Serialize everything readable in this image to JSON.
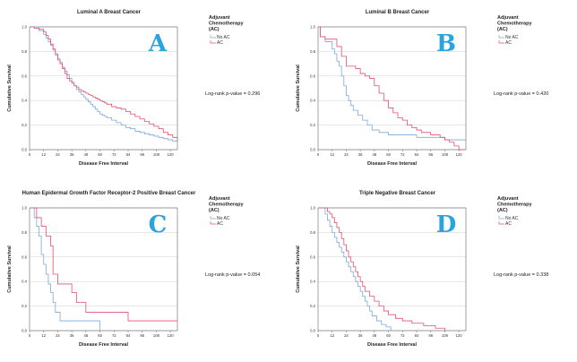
{
  "colors": {
    "no_ac": "#7fa7dc",
    "ac": "#e2506e",
    "letter": "#2aa4df",
    "grid": "#cfcfcf",
    "axis": "#666666"
  },
  "chart_data": [
    {
      "type": "line",
      "letter": "A",
      "title": "Luminal A Breast Cancer",
      "xlabel": "Disease Free Interval",
      "ylabel": "Cumulative Survival",
      "xlim": [
        0,
        126
      ],
      "ylim": [
        0,
        1.0
      ],
      "xticks": [
        "0",
        "12",
        "24",
        "36",
        "48",
        "60",
        "72",
        "84",
        "96",
        "108",
        "120"
      ],
      "yticks": [
        "0.0",
        "0.2",
        "0.4",
        "0.6",
        "0.8",
        "1.0"
      ],
      "legend_title": [
        "Adjuvant",
        "Chemotherapy",
        "(AC)"
      ],
      "pvalue": "Log-rank p-value = 0.296",
      "series": [
        {
          "name": "No AC",
          "color_key": "no_ac",
          "x": [
            0,
            4,
            8,
            12,
            14,
            16,
            18,
            20,
            22,
            24,
            26,
            28,
            30,
            32,
            34,
            36,
            38,
            40,
            42,
            44,
            46,
            48,
            50,
            52,
            54,
            56,
            58,
            60,
            62,
            64,
            66,
            70,
            74,
            78,
            82,
            86,
            90,
            94,
            98,
            102,
            106,
            110,
            114,
            118,
            122,
            126
          ],
          "y": [
            1.0,
            0.99,
            0.97,
            0.94,
            0.91,
            0.88,
            0.85,
            0.81,
            0.77,
            0.74,
            0.71,
            0.67,
            0.64,
            0.61,
            0.58,
            0.55,
            0.52,
            0.49,
            0.47,
            0.45,
            0.43,
            0.41,
            0.39,
            0.37,
            0.35,
            0.33,
            0.31,
            0.29,
            0.28,
            0.27,
            0.26,
            0.24,
            0.22,
            0.2,
            0.18,
            0.17,
            0.15,
            0.14,
            0.13,
            0.12,
            0.11,
            0.1,
            0.09,
            0.08,
            0.07,
            0.07
          ]
        },
        {
          "name": "AC",
          "color_key": "ac",
          "x": [
            0,
            4,
            8,
            12,
            14,
            16,
            18,
            20,
            22,
            24,
            26,
            28,
            30,
            32,
            34,
            36,
            38,
            40,
            42,
            44,
            46,
            48,
            50,
            52,
            54,
            56,
            58,
            60,
            62,
            64,
            66,
            70,
            74,
            78,
            82,
            86,
            90,
            94,
            98,
            102,
            106,
            110,
            114,
            118,
            122,
            126
          ],
          "y": [
            1.0,
            0.99,
            0.98,
            0.96,
            0.93,
            0.9,
            0.86,
            0.82,
            0.78,
            0.73,
            0.7,
            0.66,
            0.62,
            0.58,
            0.56,
            0.54,
            0.52,
            0.51,
            0.49,
            0.48,
            0.47,
            0.46,
            0.45,
            0.44,
            0.43,
            0.42,
            0.41,
            0.4,
            0.39,
            0.38,
            0.37,
            0.35,
            0.34,
            0.33,
            0.31,
            0.29,
            0.27,
            0.25,
            0.23,
            0.21,
            0.19,
            0.17,
            0.14,
            0.12,
            0.1,
            0.07
          ]
        }
      ]
    },
    {
      "type": "line",
      "letter": "B",
      "title": "Luminal B Breast Cancer",
      "xlabel": "Disease Free Interval",
      "ylabel": "Cumulative Survival",
      "xlim": [
        0,
        126
      ],
      "ylim": [
        0,
        1.0
      ],
      "xticks": [
        "0",
        "12",
        "24",
        "36",
        "48",
        "60",
        "72",
        "84",
        "96",
        "108",
        "120"
      ],
      "yticks": [
        "0.0",
        "0.2",
        "0.4",
        "0.6",
        "0.8",
        "1.0"
      ],
      "legend_title": [
        "Adjuvant",
        "Chemotherapy",
        "(AC)"
      ],
      "pvalue": "Log-rank p-value = 0.420",
      "series": [
        {
          "name": "No AC",
          "color_key": "no_ac",
          "x": [
            0,
            2,
            6,
            12,
            14,
            16,
            18,
            20,
            22,
            24,
            26,
            28,
            30,
            34,
            38,
            42,
            46,
            52,
            60,
            72,
            84,
            96,
            108,
            126
          ],
          "y": [
            1.0,
            0.92,
            0.88,
            0.82,
            0.78,
            0.72,
            0.68,
            0.6,
            0.52,
            0.44,
            0.4,
            0.36,
            0.32,
            0.28,
            0.24,
            0.2,
            0.16,
            0.14,
            0.12,
            0.12,
            0.1,
            0.1,
            0.08,
            0.08
          ]
        },
        {
          "name": "AC",
          "color_key": "ac",
          "x": [
            0,
            2,
            6,
            12,
            16,
            20,
            24,
            28,
            32,
            36,
            40,
            44,
            48,
            52,
            56,
            60,
            64,
            68,
            72,
            76,
            80,
            84,
            88,
            96,
            104,
            108,
            112,
            116,
            120,
            126
          ],
          "y": [
            1.0,
            0.92,
            0.9,
            0.9,
            0.84,
            0.76,
            0.68,
            0.68,
            0.66,
            0.62,
            0.6,
            0.58,
            0.52,
            0.46,
            0.4,
            0.34,
            0.3,
            0.26,
            0.24,
            0.2,
            0.18,
            0.16,
            0.14,
            0.12,
            0.1,
            0.08,
            0.06,
            0.03,
            0.0,
            0.0
          ]
        }
      ]
    },
    {
      "type": "line",
      "letter": "C",
      "title": "Human Epidermal Growth Factor Receptor-2 Positive Breast Cancer",
      "xlabel": "Disease Free Interval",
      "ylabel": "Cumulative Survival",
      "xlim": [
        0,
        126
      ],
      "ylim": [
        0,
        1.0
      ],
      "xticks": [
        "0",
        "12",
        "24",
        "36",
        "48",
        "60",
        "72",
        "84",
        "96",
        "108",
        "120"
      ],
      "yticks": [
        "0.0",
        "0.2",
        "0.4",
        "0.6",
        "0.8",
        "1.0"
      ],
      "legend_title": [
        "Adjuvant",
        "Chemotherapy",
        "(AC)"
      ],
      "pvalue": "Log-rank p-value = 0.054",
      "series": [
        {
          "name": "No AC",
          "color_key": "no_ac",
          "x": [
            0,
            4,
            6,
            8,
            10,
            12,
            14,
            16,
            18,
            20,
            22,
            26,
            30,
            36,
            40,
            60
          ],
          "y": [
            1.0,
            0.92,
            0.85,
            0.77,
            0.62,
            0.54,
            0.46,
            0.38,
            0.31,
            0.23,
            0.15,
            0.08,
            0.08,
            0.08,
            0.08,
            0.0
          ]
        },
        {
          "name": "AC",
          "color_key": "ac",
          "x": [
            0,
            6,
            10,
            14,
            18,
            20,
            24,
            30,
            36,
            40,
            48,
            60,
            72,
            84,
            96,
            108,
            126
          ],
          "y": [
            1.0,
            0.92,
            0.85,
            0.77,
            0.69,
            0.46,
            0.38,
            0.38,
            0.31,
            0.23,
            0.15,
            0.15,
            0.15,
            0.08,
            0.08,
            0.08,
            0.08
          ]
        }
      ]
    },
    {
      "type": "line",
      "letter": "D",
      "title": "Triple Negative Breast Cancer",
      "xlabel": "Disease Free Interval",
      "ylabel": "Cumulative Survival",
      "xlim": [
        0,
        126
      ],
      "ylim": [
        0,
        1.0
      ],
      "xticks": [
        "0",
        "12",
        "24",
        "36",
        "48",
        "60",
        "72",
        "84",
        "96",
        "108",
        "120"
      ],
      "yticks": [
        "0.0",
        "0.2",
        "0.4",
        "0.6",
        "0.8",
        "1.0"
      ],
      "legend_title": [
        "Adjuvant",
        "Chemotherapy",
        "(AC)"
      ],
      "pvalue": "Log-rank p-value = 0.338",
      "series": [
        {
          "name": "No AC",
          "color_key": "no_ac",
          "x": [
            0,
            6,
            8,
            10,
            12,
            14,
            16,
            18,
            20,
            22,
            24,
            26,
            28,
            30,
            32,
            34,
            36,
            38,
            40,
            42,
            44,
            46,
            50,
            54,
            58,
            62
          ],
          "y": [
            1.0,
            0.95,
            0.9,
            0.85,
            0.8,
            0.76,
            0.72,
            0.68,
            0.64,
            0.6,
            0.56,
            0.52,
            0.48,
            0.44,
            0.4,
            0.36,
            0.32,
            0.28,
            0.24,
            0.2,
            0.16,
            0.12,
            0.08,
            0.05,
            0.03,
            0.0
          ]
        },
        {
          "name": "AC",
          "color_key": "ac",
          "x": [
            0,
            8,
            10,
            12,
            14,
            16,
            18,
            20,
            22,
            24,
            26,
            28,
            30,
            32,
            34,
            36,
            38,
            40,
            44,
            48,
            52,
            56,
            60,
            66,
            72,
            80,
            90,
            100,
            108
          ],
          "y": [
            1.0,
            0.97,
            0.95,
            0.92,
            0.88,
            0.84,
            0.8,
            0.75,
            0.7,
            0.65,
            0.6,
            0.56,
            0.52,
            0.48,
            0.44,
            0.4,
            0.36,
            0.32,
            0.28,
            0.24,
            0.2,
            0.16,
            0.13,
            0.1,
            0.08,
            0.06,
            0.04,
            0.02,
            0.0
          ]
        }
      ]
    }
  ]
}
